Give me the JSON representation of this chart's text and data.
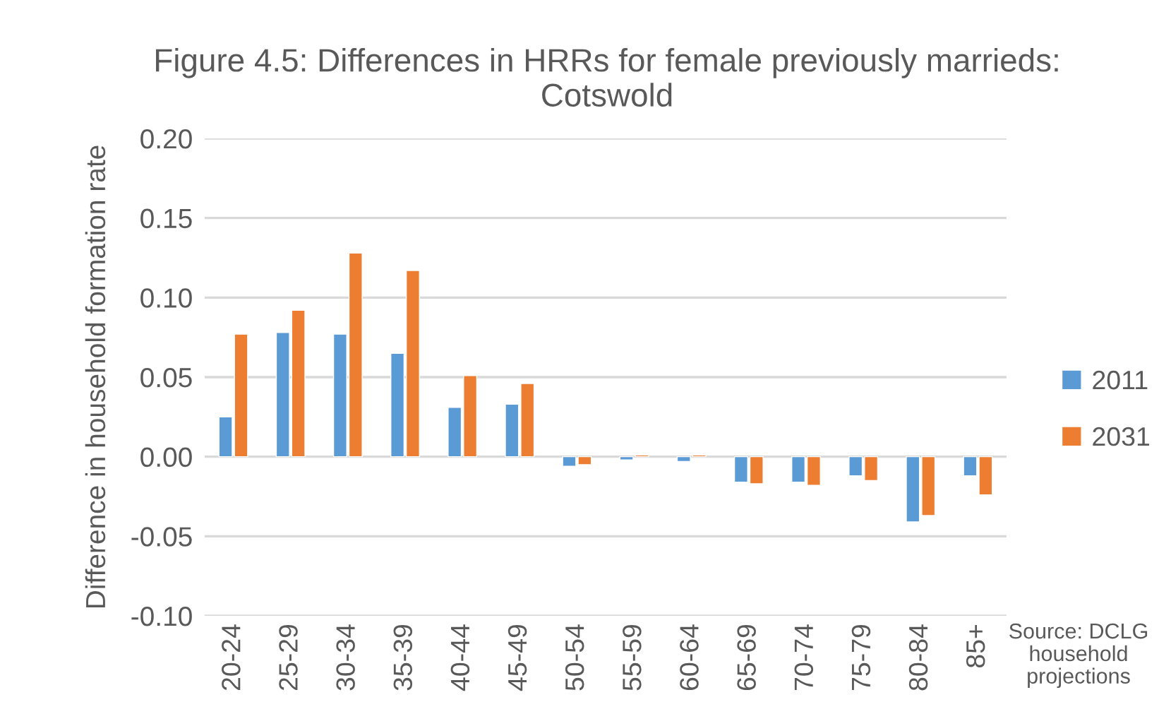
{
  "chart_data": {
    "type": "bar",
    "title": "Figure 4.5: Differences in HRRs for female previously marrieds:\nCotswold",
    "ylabel": "Difference in household formation rate",
    "categories": [
      "20-24",
      "25-29",
      "30-34",
      "35-39",
      "40-44",
      "45-49",
      "50-54",
      "55-59",
      "60-64",
      "65-69",
      "70-74",
      "75-79",
      "80-84",
      "85+"
    ],
    "series": [
      {
        "name": "2011",
        "color": "#5b9bd5",
        "values": [
          0.025,
          0.078,
          0.077,
          0.065,
          0.031,
          0.033,
          -0.006,
          -0.002,
          -0.003,
          -0.016,
          -0.016,
          -0.012,
          -0.041,
          -0.012
        ]
      },
      {
        "name": "2031",
        "color": "#ed7d31",
        "values": [
          0.077,
          0.092,
          0.128,
          0.117,
          0.051,
          0.046,
          -0.005,
          0.001,
          0.001,
          -0.017,
          -0.018,
          -0.015,
          -0.037,
          -0.024
        ]
      }
    ],
    "ylim": [
      -0.1,
      0.2
    ],
    "yticks": [
      {
        "value": -0.1,
        "label": "-0.10"
      },
      {
        "value": -0.05,
        "label": "-0.05"
      },
      {
        "value": 0,
        "label": "0.00"
      },
      {
        "value": 0.05,
        "label": "0.05"
      },
      {
        "value": 0.1,
        "label": "0.10"
      },
      {
        "value": 0.15,
        "label": "0.15"
      },
      {
        "value": 0.2,
        "label": "0.20"
      }
    ],
    "grid": "y",
    "legend": "right",
    "annotations": [
      "Source: DCLG\nhousehold\nprojections"
    ]
  }
}
